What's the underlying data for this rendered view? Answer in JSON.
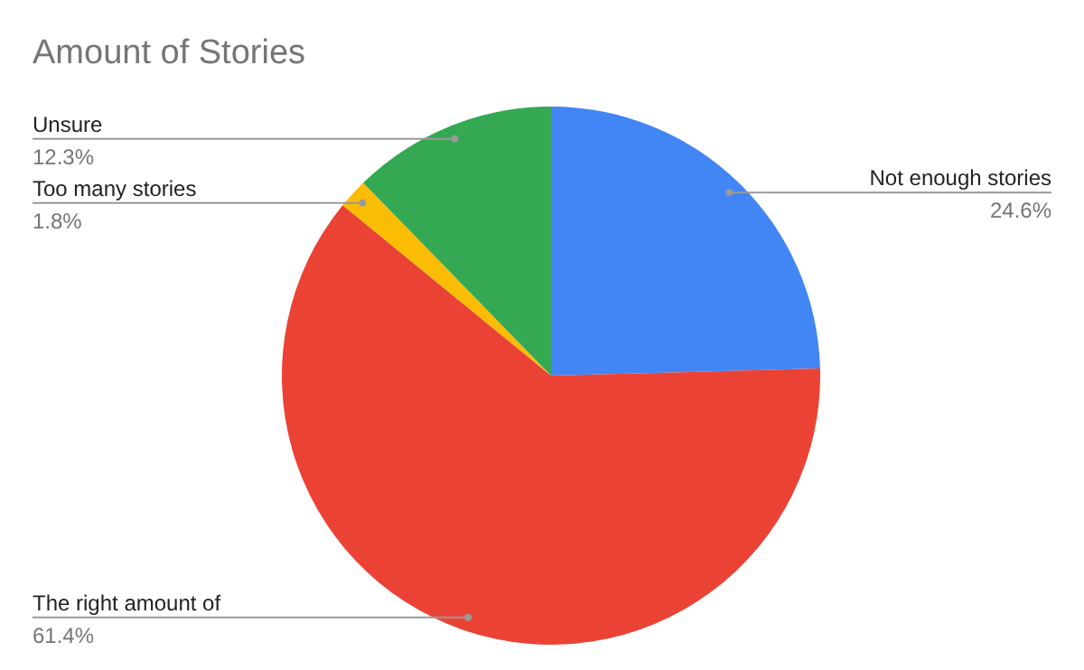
{
  "chart_data": {
    "type": "pie",
    "title": "Amount of Stories",
    "categories": [
      "Not enough stories",
      "The right amount of",
      "Too many stories",
      "Unsure"
    ],
    "values": [
      24.6,
      61.4,
      1.8,
      12.3
    ],
    "colors": [
      "#4285f4",
      "#ea4335",
      "#fbbc04",
      "#34a853"
    ],
    "value_labels": [
      "24.6%",
      "61.4%",
      "1.8%",
      "12.3%"
    ]
  }
}
